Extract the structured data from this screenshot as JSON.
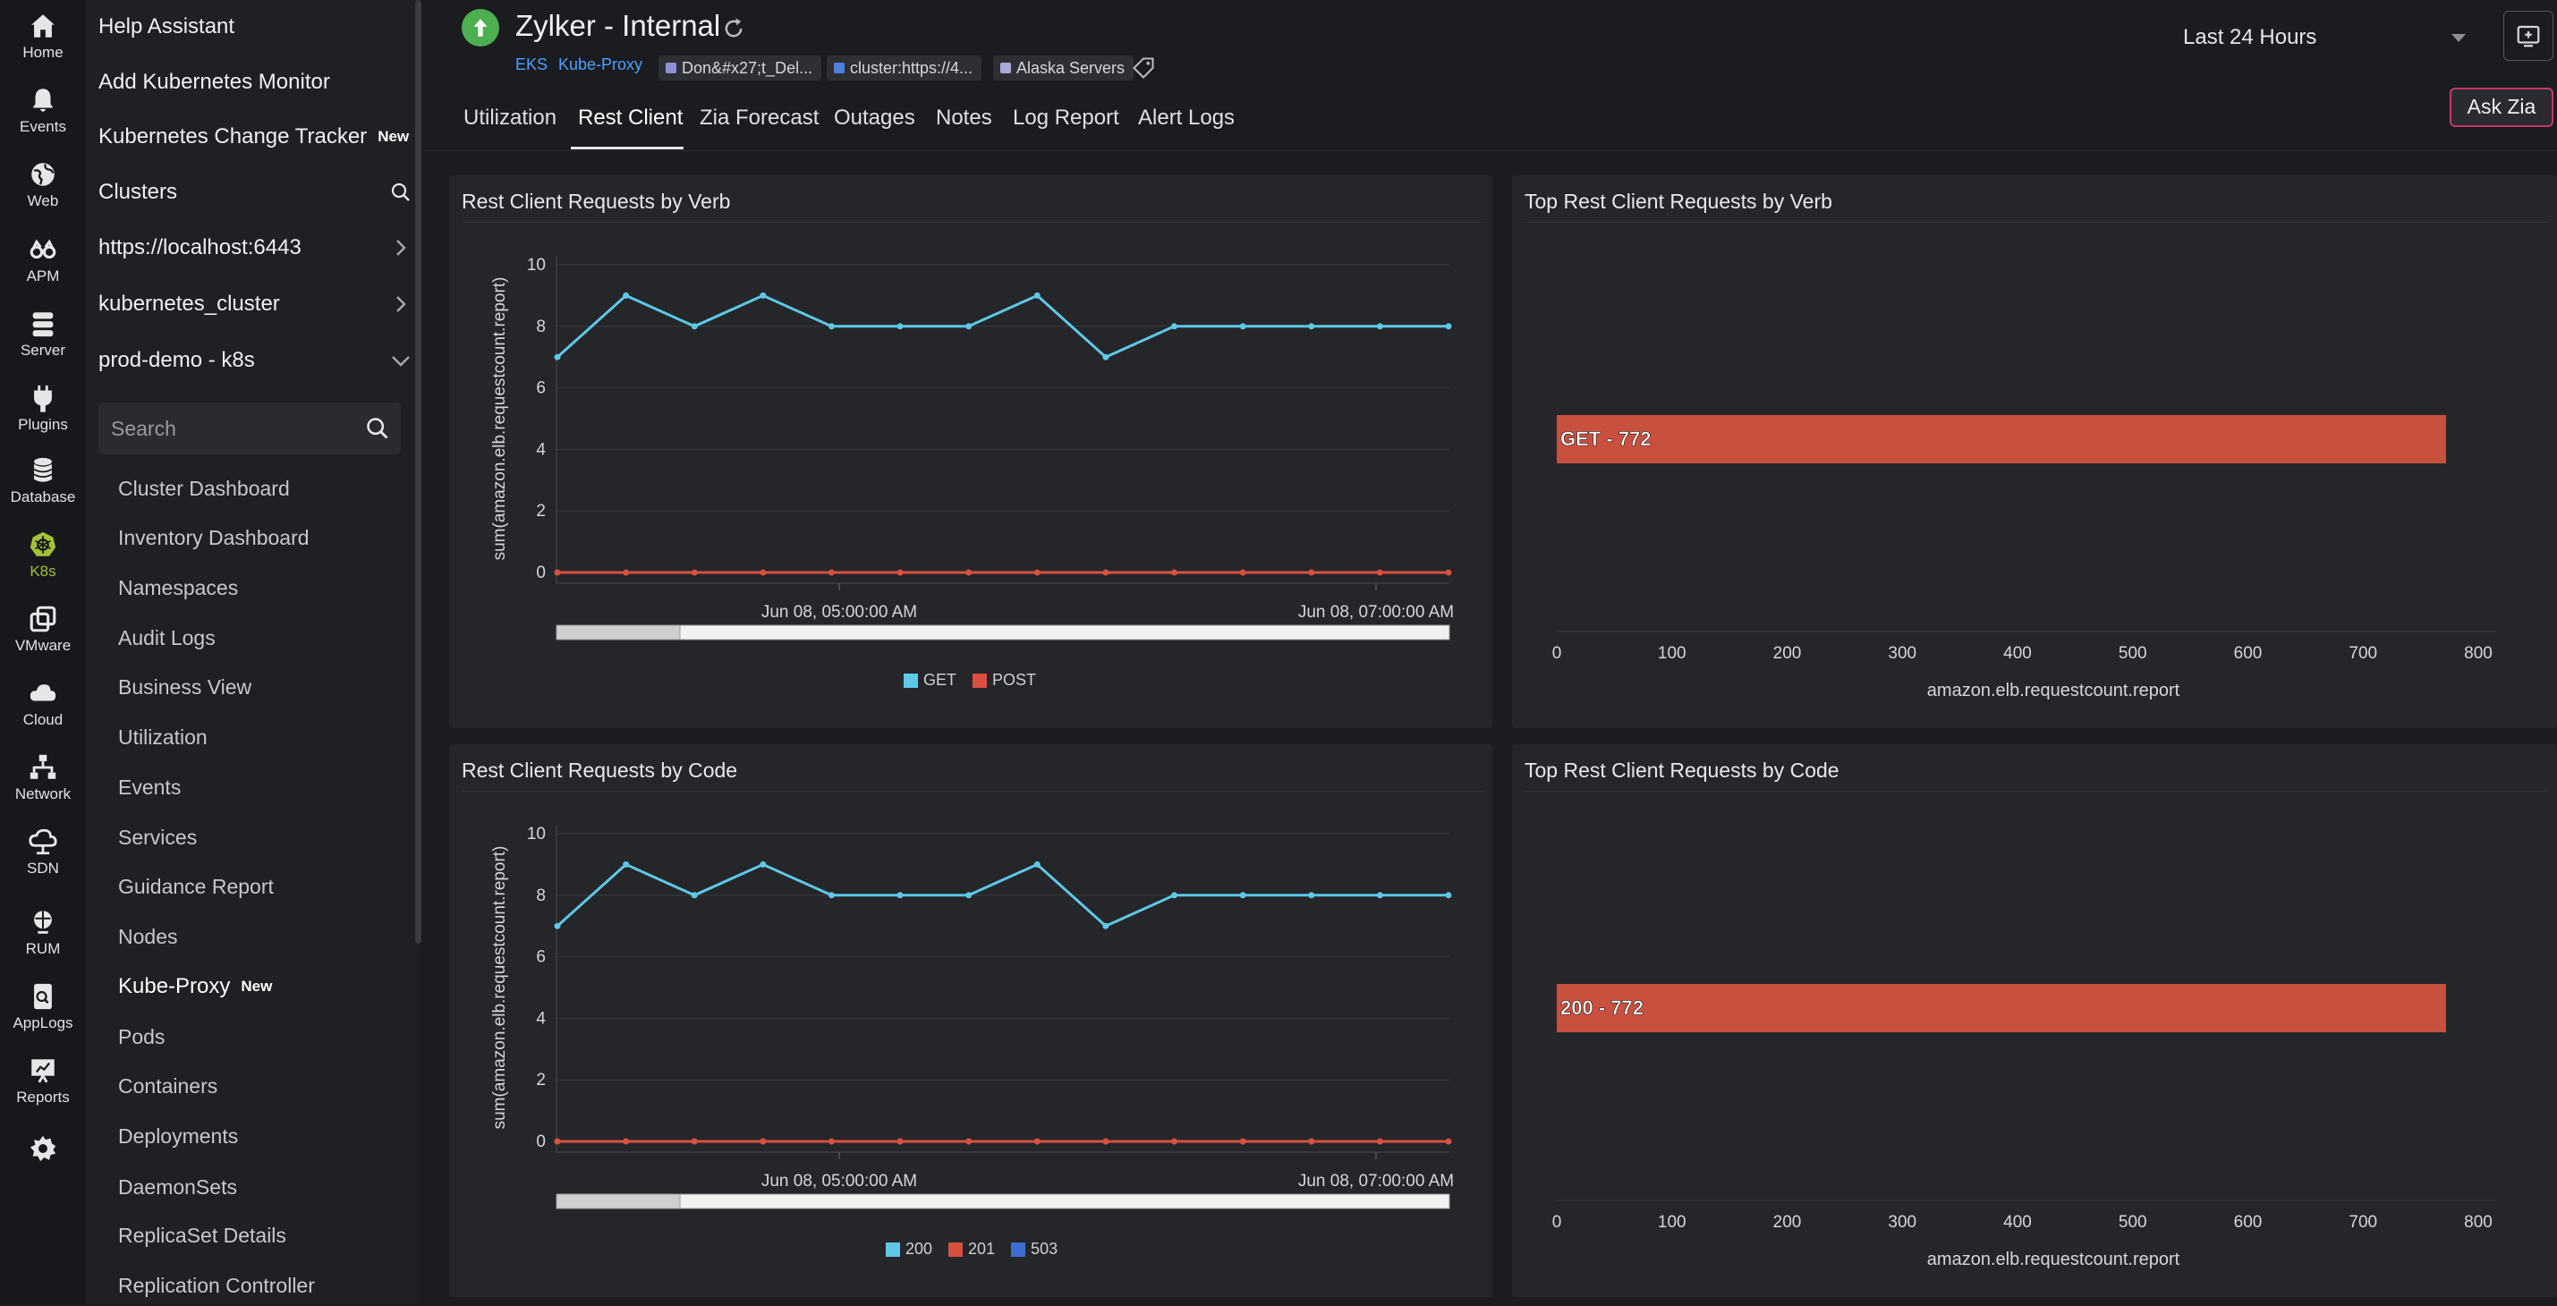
{
  "rail": [
    {
      "label": "Home",
      "icon": "home-icon"
    },
    {
      "label": "Events",
      "icon": "bell-icon"
    },
    {
      "label": "Web",
      "icon": "globe-icon"
    },
    {
      "label": "APM",
      "icon": "binoculars-icon"
    },
    {
      "label": "Server",
      "icon": "server-icon"
    },
    {
      "label": "Plugins",
      "icon": "plug-icon"
    },
    {
      "label": "Database",
      "icon": "database-icon"
    },
    {
      "label": "K8s",
      "icon": "kubernetes-icon",
      "active": true
    },
    {
      "label": "VMware",
      "icon": "vmware-icon"
    },
    {
      "label": "Cloud",
      "icon": "cloud-icon"
    },
    {
      "label": "Network",
      "icon": "network-icon"
    },
    {
      "label": "SDN",
      "icon": "sdn-icon"
    },
    {
      "label": "RUM",
      "icon": "rum-icon"
    },
    {
      "label": "AppLogs",
      "icon": "applogs-icon"
    },
    {
      "label": "Reports",
      "icon": "reports-icon"
    }
  ],
  "nav": {
    "help_assistant": "Help Assistant",
    "add_k8s_monitor": "Add Kubernetes Monitor",
    "change_tracker": "Kubernetes Change Tracker",
    "change_tracker_badge": "New",
    "clusters_heading": "Clusters",
    "clusters": [
      "https://localhost:6443",
      "kubernetes_cluster",
      "prod-demo - k8s"
    ],
    "search_placeholder": "Search",
    "items": [
      "Cluster Dashboard",
      "Inventory Dashboard",
      "Namespaces",
      "Audit Logs",
      "Business View",
      "Utilization",
      "Events",
      "Services",
      "Guidance Report",
      "Nodes",
      "Kube-Proxy",
      "Pods",
      "Containers",
      "Deployments",
      "DaemonSets",
      "ReplicaSet Details",
      "Replication Controller"
    ],
    "active_item_badge": "New"
  },
  "header": {
    "title": "Zylker - Internal",
    "links": [
      "EKS",
      "Kube-Proxy"
    ],
    "chips": [
      {
        "label": "Don&#x27;t_Del...",
        "color": "#8d8fd8"
      },
      {
        "label": "cluster:https://4...",
        "color": "#4f7fe0"
      },
      {
        "label": "Alaska Servers",
        "color": "#a9a9d8"
      }
    ],
    "time_range": "Last 24 Hours",
    "ask_zia": "Ask Zia",
    "tabs": [
      "Utilization",
      "Rest Client",
      "Zia Forecast",
      "Outages",
      "Notes",
      "Log Report",
      "Alert Logs"
    ],
    "active_tab": "Rest Client"
  },
  "panels": {
    "verb_title": "Rest Client Requests by Verb",
    "top_verb_title": "Top Rest Client Requests by Verb",
    "code_title": "Rest Client Requests by Code",
    "top_code_title": "Top Rest Client Requests by Code"
  },
  "colors": {
    "cyan": "#5ec8e6",
    "red": "#d9503f",
    "blue": "#3c6fd1",
    "bar": "#c8503f"
  },
  "chart_data": [
    {
      "type": "line",
      "title": "Rest Client Requests by Verb",
      "ylabel": "sum(amazon.elb.requestcount.report)",
      "ylim": [
        0,
        10
      ],
      "yticks": [
        0,
        2,
        4,
        6,
        8,
        10
      ],
      "xticks": [
        "Jun 08, 05:00:00 AM",
        "Jun 08, 07:00:00 AM"
      ],
      "series": [
        {
          "name": "GET",
          "color": "#5ec8e6",
          "values": [
            7,
            9,
            8,
            9,
            8,
            8,
            8,
            9,
            7,
            8,
            8,
            8,
            8,
            8
          ]
        },
        {
          "name": "POST",
          "color": "#d9503f",
          "values": [
            0,
            0,
            0,
            0,
            0,
            0,
            0,
            0,
            0,
            0,
            0,
            0,
            0,
            0
          ]
        }
      ]
    },
    {
      "type": "bar",
      "title": "Top Rest Client Requests by Verb",
      "categories": [
        "GET - 772"
      ],
      "values": [
        772
      ],
      "xlim": [
        0,
        800
      ],
      "xticks": [
        0,
        100,
        200,
        300,
        400,
        500,
        600,
        700,
        800
      ],
      "xlabel": "amazon.elb.requestcount.report"
    },
    {
      "type": "line",
      "title": "Rest Client Requests by Code",
      "ylabel": "sum(amazon.elb.requestcount.report)",
      "ylim": [
        0,
        10
      ],
      "yticks": [
        0,
        2,
        4,
        6,
        8,
        10
      ],
      "xticks": [
        "Jun 08, 05:00:00 AM",
        "Jun 08, 07:00:00 AM"
      ],
      "series": [
        {
          "name": "200",
          "color": "#5ec8e6",
          "values": [
            7,
            9,
            8,
            9,
            8,
            8,
            8,
            9,
            7,
            8,
            8,
            8,
            8,
            8
          ]
        },
        {
          "name": "201",
          "color": "#d9503f",
          "values": [
            0,
            0,
            0,
            0,
            0,
            0,
            0,
            0,
            0,
            0,
            0,
            0,
            0,
            0
          ]
        },
        {
          "name": "503",
          "color": "#3c6fd1",
          "values": [
            0,
            0,
            0,
            0,
            0,
            0,
            0,
            0,
            0,
            0,
            0,
            0,
            0,
            0
          ]
        }
      ]
    },
    {
      "type": "bar",
      "title": "Top Rest Client Requests by Code",
      "categories": [
        "200 - 772"
      ],
      "values": [
        772
      ],
      "xlim": [
        0,
        800
      ],
      "xticks": [
        0,
        100,
        200,
        300,
        400,
        500,
        600,
        700,
        800
      ],
      "xlabel": "amazon.elb.requestcount.report"
    }
  ]
}
